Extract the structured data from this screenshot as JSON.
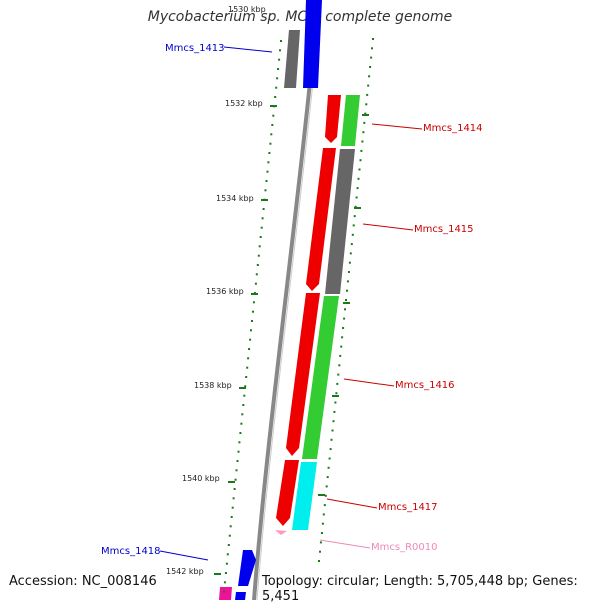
{
  "title": "Mycobacterium sp. MCS, complete genome",
  "footer": {
    "accession": "Accession: NC_008146",
    "topology": "Topology: circular; Length: 5,705,448 bp; Genes: 5,451"
  },
  "axis": {
    "unit": "kbp",
    "ticks": [
      "1530 kbp",
      "1532 kbp",
      "1534 kbp",
      "1536 kbp",
      "1538 kbp",
      "1540 kbp",
      "1542 kbp"
    ]
  },
  "colors": {
    "backbone": "#888888",
    "tick_marks": "#1a7a1a",
    "forward_label": "#0000cc",
    "reverse_label": "#cc0000",
    "rna_label": "#ee88bb"
  },
  "genes": [
    {
      "name": "Mmcs_1413",
      "label_color": "#0000cc"
    },
    {
      "name": "Mmcs_1414",
      "label_color": "#cc0000"
    },
    {
      "name": "Mmcs_1415",
      "label_color": "#cc0000"
    },
    {
      "name": "Mmcs_1416",
      "label_color": "#cc0000"
    },
    {
      "name": "Mmcs_1417",
      "label_color": "#cc0000"
    },
    {
      "name": "Mmcs_R0010",
      "label_color": "#ee88bb"
    },
    {
      "name": "Mmcs_1418",
      "label_color": "#0000cc"
    }
  ]
}
